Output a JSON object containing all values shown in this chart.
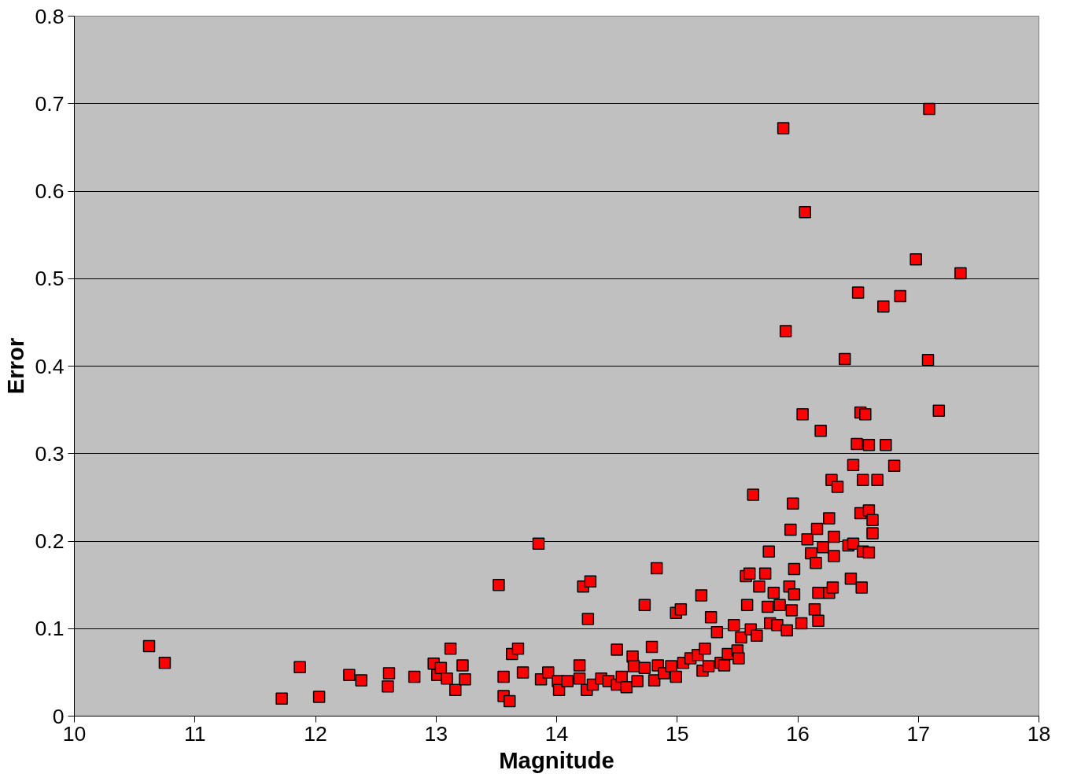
{
  "chart_data": {
    "type": "scatter",
    "xlabel": "Magnitude",
    "ylabel": "Error",
    "xlim": [
      10,
      18
    ],
    "ylim": [
      0,
      0.8
    ],
    "xticks": [
      10,
      11,
      12,
      13,
      14,
      15,
      16,
      17,
      18
    ],
    "yticks": [
      0,
      0.1,
      0.2,
      0.3,
      0.4,
      0.5,
      0.6,
      0.7,
      0.8
    ],
    "grid": "y",
    "marker": "square",
    "series": [
      {
        "color": "#ff0000",
        "x": [
          10.62,
          10.75,
          11.72,
          11.87,
          12.03,
          12.28,
          12.38,
          12.6,
          12.61,
          12.82,
          12.98,
          13.01,
          13.04,
          13.09,
          13.12,
          13.16,
          13.22,
          13.24,
          13.52,
          13.56,
          13.56,
          13.61,
          13.63,
          13.68,
          13.72,
          13.85,
          13.87,
          13.93,
          14.01,
          14.02,
          14.09,
          14.19,
          14.19,
          14.22,
          14.25,
          14.26,
          14.28,
          14.3,
          14.37,
          14.43,
          14.5,
          14.5,
          14.54,
          14.58,
          14.63,
          14.64,
          14.67,
          14.73,
          14.73,
          14.79,
          14.81,
          14.83,
          14.84,
          14.89,
          14.95,
          14.99,
          14.99,
          15.03,
          15.05,
          15.11,
          15.17,
          15.2,
          15.21,
          15.23,
          15.26,
          15.28,
          15.33,
          15.36,
          15.39,
          15.42,
          15.47,
          15.5,
          15.51,
          15.53,
          15.57,
          15.58,
          15.6,
          15.61,
          15.63,
          15.66,
          15.68,
          15.73,
          15.75,
          15.76,
          15.77,
          15.8,
          15.83,
          15.85,
          15.88,
          15.9,
          15.91,
          15.93,
          15.94,
          15.95,
          15.96,
          15.97,
          15.97,
          16.03,
          16.04,
          16.06,
          16.08,
          16.11,
          16.14,
          16.15,
          16.16,
          16.17,
          16.17,
          16.19,
          16.21,
          16.26,
          16.26,
          16.28,
          16.29,
          16.3,
          16.3,
          16.33,
          16.39,
          16.42,
          16.44,
          16.46,
          16.46,
          16.49,
          16.5,
          16.52,
          16.52,
          16.53,
          16.54,
          16.54,
          16.56,
          16.59,
          16.59,
          16.59,
          16.62,
          16.62,
          16.66,
          16.71,
          16.73,
          16.8,
          16.85,
          16.98,
          17.08,
          17.09,
          17.17,
          17.35
        ],
        "values": [
          0.08,
          0.061,
          0.02,
          0.056,
          0.022,
          0.047,
          0.041,
          0.034,
          0.049,
          0.045,
          0.06,
          0.047,
          0.055,
          0.043,
          0.077,
          0.03,
          0.058,
          0.042,
          0.15,
          0.045,
          0.023,
          0.017,
          0.071,
          0.077,
          0.05,
          0.197,
          0.042,
          0.05,
          0.04,
          0.03,
          0.04,
          0.058,
          0.043,
          0.148,
          0.03,
          0.111,
          0.154,
          0.036,
          0.043,
          0.04,
          0.076,
          0.036,
          0.045,
          0.033,
          0.068,
          0.057,
          0.04,
          0.127,
          0.055,
          0.079,
          0.041,
          0.169,
          0.058,
          0.049,
          0.057,
          0.045,
          0.118,
          0.122,
          0.061,
          0.066,
          0.07,
          0.138,
          0.052,
          0.077,
          0.057,
          0.113,
          0.096,
          0.061,
          0.058,
          0.071,
          0.104,
          0.075,
          0.066,
          0.09,
          0.16,
          0.127,
          0.163,
          0.099,
          0.253,
          0.092,
          0.148,
          0.163,
          0.125,
          0.188,
          0.106,
          0.141,
          0.104,
          0.127,
          0.672,
          0.44,
          0.098,
          0.148,
          0.213,
          0.121,
          0.243,
          0.168,
          0.139,
          0.106,
          0.345,
          0.576,
          0.202,
          0.186,
          0.122,
          0.175,
          0.214,
          0.109,
          0.141,
          0.326,
          0.193,
          0.141,
          0.226,
          0.27,
          0.147,
          0.205,
          0.183,
          0.262,
          0.408,
          0.195,
          0.157,
          0.287,
          0.197,
          0.311,
          0.484,
          0.232,
          0.347,
          0.147,
          0.27,
          0.188,
          0.345,
          0.187,
          0.235,
          0.31,
          0.209,
          0.224,
          0.27,
          0.468,
          0.31,
          0.286,
          0.48,
          0.522,
          0.407,
          0.694,
          0.349,
          0.506
        ]
      }
    ]
  }
}
